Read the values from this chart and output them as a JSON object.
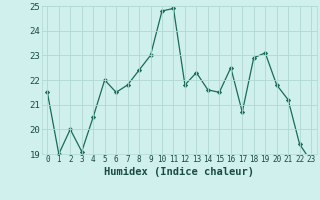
{
  "x": [
    0,
    1,
    2,
    3,
    4,
    5,
    6,
    7,
    8,
    9,
    10,
    11,
    12,
    13,
    14,
    15,
    16,
    17,
    18,
    19,
    20,
    21,
    22,
    23
  ],
  "y": [
    21.5,
    19.0,
    20.0,
    19.1,
    20.5,
    22.0,
    21.5,
    21.8,
    22.4,
    23.0,
    24.8,
    24.9,
    21.8,
    22.3,
    21.6,
    21.5,
    22.5,
    20.7,
    22.9,
    23.1,
    21.8,
    21.2,
    19.4,
    18.7
  ],
  "xlabel": "Humidex (Indice chaleur)",
  "ylim": [
    19,
    25
  ],
  "xlim_min": -0.5,
  "xlim_max": 23.5,
  "yticks": [
    19,
    20,
    21,
    22,
    23,
    24,
    25
  ],
  "xticks": [
    0,
    1,
    2,
    3,
    4,
    5,
    6,
    7,
    8,
    9,
    10,
    11,
    12,
    13,
    14,
    15,
    16,
    17,
    18,
    19,
    20,
    21,
    22,
    23
  ],
  "line_color": "#1a6b5a",
  "marker_color": "#1a6b5a",
  "bg_color": "#cff0ec",
  "grid_color": "#b0d8d4",
  "label_color": "#1a4a44",
  "xlabel_fontsize": 7.5,
  "tick_fontsize": 5.5,
  "ytick_fontsize": 6.5
}
